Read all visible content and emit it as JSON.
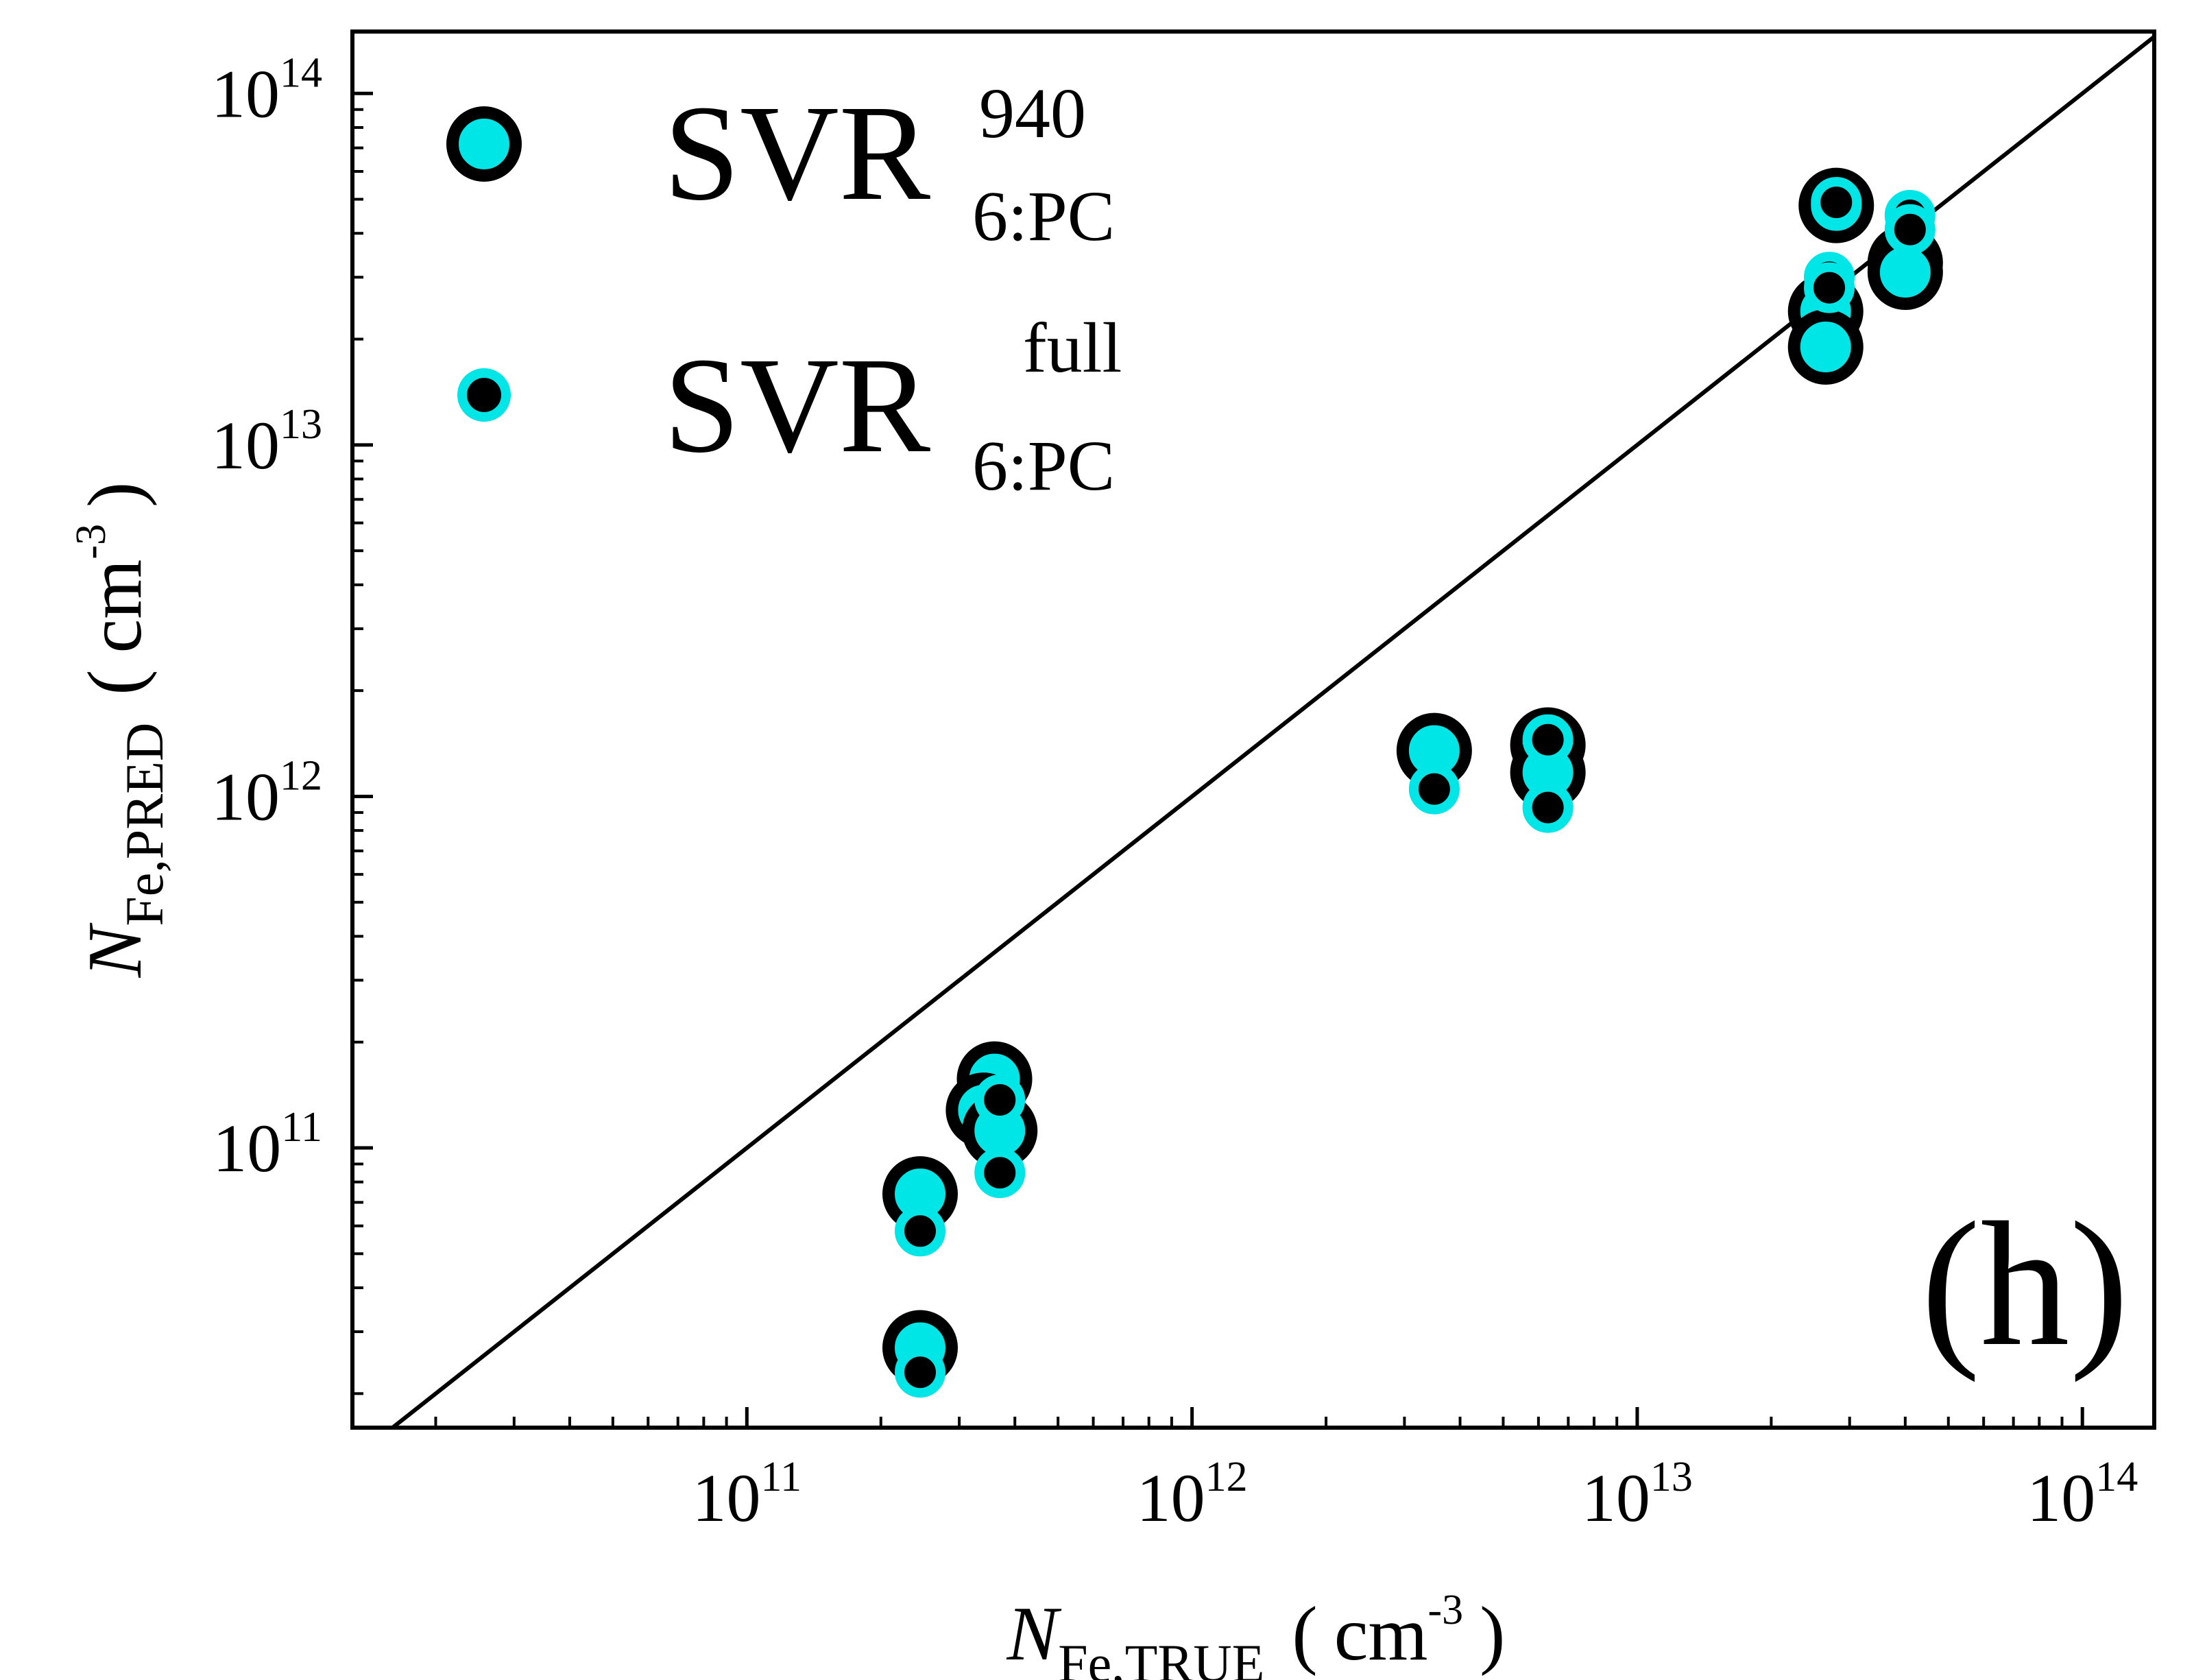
{
  "chart_data": {
    "type": "scatter",
    "xscale": "log",
    "yscale": "log",
    "xlim": [
      13000000000.0,
      145000000000000.0
    ],
    "ylim": [
      16000000000.0,
      150000000000000.0
    ],
    "xticks": [
      {
        "base": "10",
        "exp": "11",
        "value": 100000000000.0
      },
      {
        "base": "10",
        "exp": "12",
        "value": 1000000000000.0
      },
      {
        "base": "10",
        "exp": "13",
        "value": 10000000000000.0
      },
      {
        "base": "10",
        "exp": "14",
        "value": 100000000000000.0
      }
    ],
    "yticks": [
      {
        "base": "10",
        "exp": "11",
        "value": 100000000000.0
      },
      {
        "base": "10",
        "exp": "12",
        "value": 1000000000000.0
      },
      {
        "base": "10",
        "exp": "13",
        "value": 10000000000000.0
      },
      {
        "base": "10",
        "exp": "14",
        "value": 100000000000000.0
      }
    ],
    "xlabel": {
      "italic": "N",
      "sub": "Fe,TRUE",
      "open": "(",
      "unit": "cm",
      "unit_exp": "-3",
      "close": ")"
    },
    "ylabel": {
      "italic": "N",
      "sub": "Fe,PRED",
      "open": "(",
      "unit": "cm",
      "unit_exp": "-3",
      "close": ")"
    },
    "panel_label": "(h)",
    "reference_line": "y = x",
    "grid": false,
    "legend_position": "top-left",
    "colors": {
      "cyan": "#00e5e5",
      "black": "#000000",
      "axis": "#000000"
    },
    "series": [
      {
        "legend_main": "SVR",
        "legend_sup": "940",
        "legend_sub": "6:PC",
        "marker": "large cyan circle, black outline",
        "points": [
          {
            "x": 245000000000.0,
            "y": 74000000000.0
          },
          {
            "x": 245000000000.0,
            "y": 27000000000.0
          },
          {
            "x": 360000000000.0,
            "y": 157000000000.0
          },
          {
            "x": 340000000000.0,
            "y": 128000000000.0
          },
          {
            "x": 370000000000.0,
            "y": 112000000000.0
          },
          {
            "x": 3500000000000.0,
            "y": 1350000000000.0
          },
          {
            "x": 6300000000000.0,
            "y": 1400000000000.0
          },
          {
            "x": 6300000000000.0,
            "y": 1170000000000.0
          },
          {
            "x": 28000000000000.0,
            "y": 48000000000000.0
          },
          {
            "x": 26500000000000.0,
            "y": 24000000000000.0
          },
          {
            "x": 26500000000000.0,
            "y": 19000000000000.0
          },
          {
            "x": 40000000000000.0,
            "y": 33000000000000.0
          },
          {
            "x": 40000000000000.0,
            "y": 31000000000000.0
          }
        ]
      },
      {
        "legend_main": "SVR",
        "legend_sup": "full",
        "legend_sub": "6:PC",
        "marker": "small black circle, cyan outline",
        "points": [
          {
            "x": 245000000000.0,
            "y": 58000000000.0
          },
          {
            "x": 245000000000.0,
            "y": 23000000000.0
          },
          {
            "x": 370000000000.0,
            "y": 137000000000.0
          },
          {
            "x": 370000000000.0,
            "y": 85000000000.0
          },
          {
            "x": 3500000000000.0,
            "y": 1050000000000.0
          },
          {
            "x": 6300000000000.0,
            "y": 1450000000000.0
          },
          {
            "x": 6300000000000.0,
            "y": 930000000000.0
          },
          {
            "x": 28000000000000.0,
            "y": 49000000000000.0
          },
          {
            "x": 27000000000000.0,
            "y": 30000000000000.0
          },
          {
            "x": 27000000000000.0,
            "y": 28000000000000.0
          },
          {
            "x": 41000000000000.0,
            "y": 45000000000000.0
          },
          {
            "x": 41000000000000.0,
            "y": 41000000000000.0
          }
        ]
      }
    ]
  }
}
